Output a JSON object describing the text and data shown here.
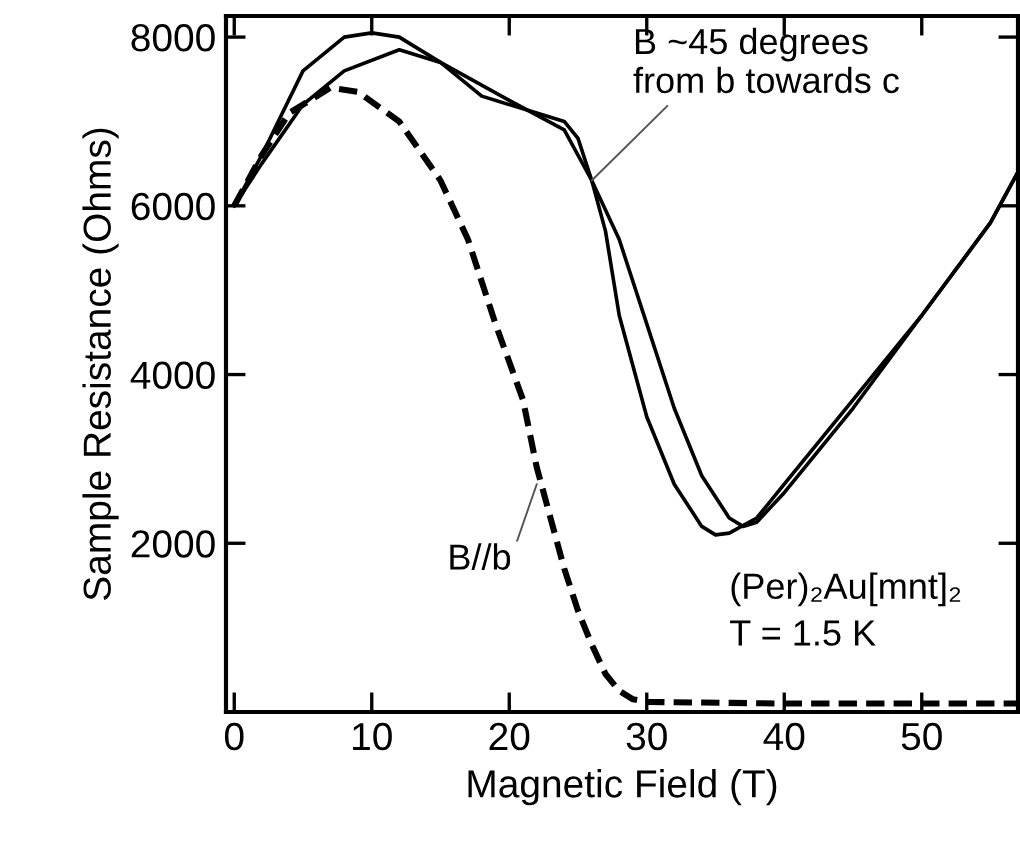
{
  "chart_data": {
    "type": "line",
    "xlabel": "Magnetic Field (T)",
    "ylabel": "Sample Resistance (Ohms)",
    "xlim": [
      -0.6,
      57
    ],
    "ylim": [
      0,
      8250
    ],
    "xticks": [
      0,
      10,
      20,
      30,
      40,
      50
    ],
    "yticks": [
      2000,
      4000,
      6000,
      8000
    ],
    "grid": false,
    "legend": false,
    "marker": "none",
    "series": [
      {
        "color": "#000000",
        "line_style": "solid",
        "x": [
          0,
          2,
          5,
          8,
          10,
          12,
          15,
          18,
          22,
          24,
          25,
          26,
          27,
          28,
          30,
          32,
          34,
          35,
          36,
          38,
          40,
          45,
          50,
          55,
          57
        ],
        "values": [
          6000,
          6600,
          7600,
          8000,
          8050,
          8000,
          7700,
          7300,
          7100,
          7000,
          6800,
          6300,
          5700,
          4700,
          3500,
          2700,
          2200,
          2100,
          2120,
          2300,
          2700,
          3700,
          4700,
          5800,
          6400
        ]
      },
      {
        "color": "#000000",
        "line_style": "solid",
        "x": [
          0,
          2,
          5,
          8,
          12,
          15,
          20,
          24,
          26,
          28,
          30,
          32,
          34,
          36,
          37,
          38,
          40,
          45,
          50,
          55,
          57
        ],
        "values": [
          6000,
          6500,
          7200,
          7600,
          7850,
          7700,
          7250,
          6900,
          6300,
          5600,
          4600,
          3600,
          2800,
          2300,
          2200,
          2250,
          2600,
          3600,
          4700,
          5800,
          6400
        ]
      },
      {
        "color": "#000000",
        "line_style": "dashed",
        "x": [
          0,
          2,
          4,
          7,
          9,
          12,
          15,
          17,
          19,
          21,
          22,
          23,
          24,
          25,
          26,
          27,
          28,
          29,
          30,
          40,
          57
        ],
        "values": [
          6000,
          6600,
          7100,
          7400,
          7350,
          7000,
          6300,
          5600,
          4600,
          3700,
          2900,
          2300,
          1700,
          1200,
          800,
          450,
          250,
          150,
          120,
          100,
          100
        ]
      }
    ],
    "annotations": [
      {
        "text": "B ~45 degrees\nfrom b towards c",
        "x": 26,
        "y": 6300
      },
      {
        "text": "B//b",
        "x": 22,
        "y": 2700
      },
      "(Per)₂Au[mnt]₂\nT = 1.5 K"
    ]
  }
}
